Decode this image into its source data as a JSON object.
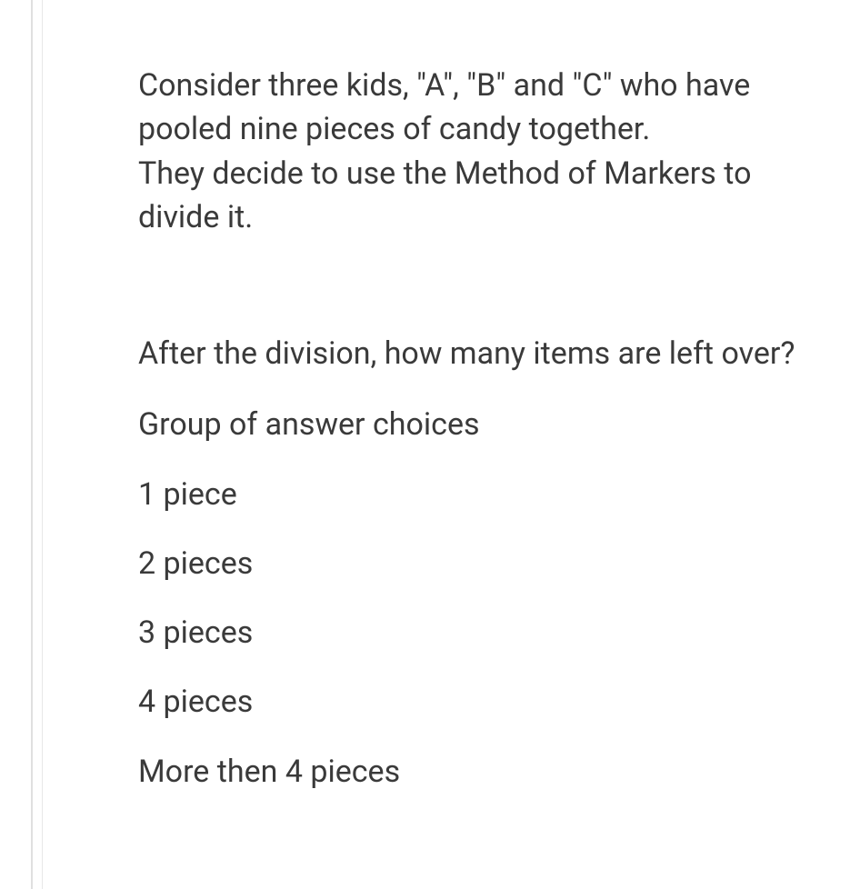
{
  "question": {
    "intro": "Consider three kids, \"A\", \"B\" and \"C\" who have pooled nine pieces of candy together.\nThey decide to use the Method of Markers to divide it.",
    "main": "After the division, how many items are left over?",
    "group_label": "Group of answer choices",
    "choices": [
      "1 piece",
      "2 pieces",
      "3 pieces",
      "4 pieces",
      "More then 4 pieces"
    ]
  },
  "styling": {
    "text_color": "#3a3a3a",
    "background_color": "#ffffff",
    "border_color": "#e0e0e0",
    "font_size": 34,
    "line_height": 1.42
  }
}
